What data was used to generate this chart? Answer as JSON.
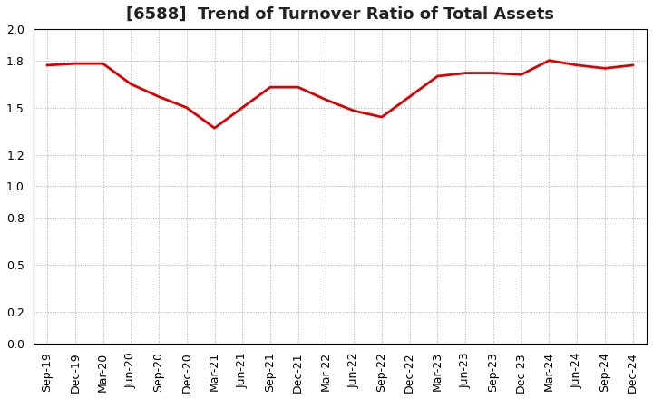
{
  "title": "[6588]  Trend of Turnover Ratio of Total Assets",
  "x_labels": [
    "Sep-19",
    "Dec-19",
    "Mar-20",
    "Jun-20",
    "Sep-20",
    "Dec-20",
    "Mar-21",
    "Jun-21",
    "Sep-21",
    "Dec-21",
    "Mar-22",
    "Jun-22",
    "Sep-22",
    "Dec-22",
    "Mar-23",
    "Jun-23",
    "Sep-23",
    "Dec-23",
    "Mar-24",
    "Jun-24",
    "Sep-24",
    "Dec-24"
  ],
  "y_values": [
    1.77,
    1.78,
    1.78,
    1.65,
    1.57,
    1.5,
    1.37,
    1.5,
    1.63,
    1.63,
    1.55,
    1.48,
    1.44,
    1.57,
    1.7,
    1.72,
    1.72,
    1.71,
    1.8,
    1.77,
    1.75,
    1.77
  ],
  "line_color": "#dd0000",
  "line_width": 2.0,
  "ylim": [
    0.0,
    2.0
  ],
  "yticks": [
    0.0,
    0.2,
    0.5,
    0.8,
    1.0,
    1.2,
    1.5,
    1.8,
    2.0
  ],
  "grid_color": "#aaaaaa",
  "bg_color": "#ffffff",
  "title_fontsize": 13,
  "tick_fontsize": 9,
  "title_color": "#222222"
}
